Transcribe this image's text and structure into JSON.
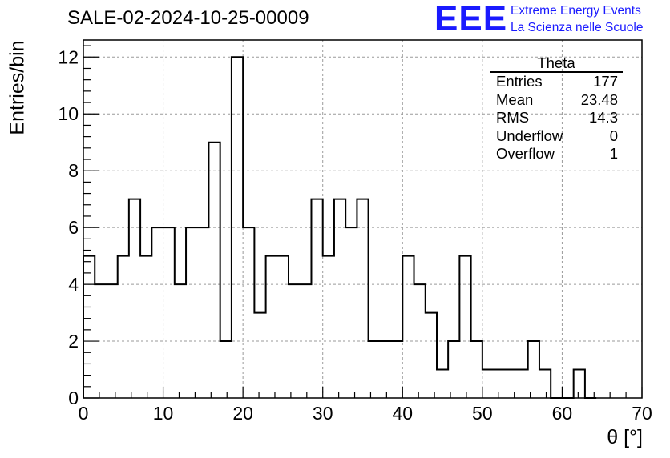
{
  "header": {
    "run_title": "SALE-02-2024-10-25-00009",
    "logo_mark": "EEE",
    "logo_line1": "Extreme Energy Events",
    "logo_line2": "La Scienza nelle Scuole"
  },
  "stats_box": {
    "title": "Theta",
    "rows": [
      {
        "label": "Entries",
        "value": "177"
      },
      {
        "label": "Mean",
        "value": "23.48"
      },
      {
        "label": "RMS",
        "value": "14.3"
      },
      {
        "label": "Underflow",
        "value": "0"
      },
      {
        "label": "Overflow",
        "value": "1"
      }
    ]
  },
  "colors": {
    "line": "#000000",
    "grid": "#9a9a9a",
    "logo": "#1a1aff"
  },
  "chart_data": {
    "type": "histogram",
    "xlabel": "θ [°]",
    "ylabel": "Entries/bin",
    "xlim": [
      0,
      70
    ],
    "ylim": [
      0,
      12.6
    ],
    "grid": true,
    "bin_edges": [
      0,
      1.43,
      2.86,
      4.29,
      5.71,
      7.14,
      8.57,
      10,
      11.43,
      12.86,
      14.29,
      15.71,
      17.14,
      18.57,
      20,
      21.43,
      22.86,
      24.29,
      25.71,
      27.14,
      28.57,
      30,
      31.43,
      32.86,
      34.29,
      35.71,
      37.14,
      38.57,
      40,
      41.43,
      42.86,
      44.29,
      45.71,
      47.14,
      48.57,
      50,
      51.43,
      52.86,
      54.29,
      55.71,
      57.14,
      58.57,
      60,
      61.43,
      62.86,
      64.29
    ],
    "values": [
      5,
      4,
      4,
      5,
      7,
      5,
      6,
      6,
      4,
      6,
      6,
      9,
      2,
      12,
      6,
      3,
      5,
      5,
      4,
      4,
      7,
      5,
      7,
      6,
      7,
      2,
      2,
      2,
      5,
      4,
      3,
      1,
      2,
      5,
      2,
      1,
      1,
      1,
      1,
      2,
      1,
      0,
      0,
      1,
      0
    ],
    "x_ticks": [
      0,
      10,
      20,
      30,
      40,
      50,
      60,
      70
    ],
    "x_tick_labels": [
      "0",
      "10",
      "20",
      "30",
      "40",
      "50",
      "60",
      "70"
    ],
    "y_ticks": [
      0,
      2,
      4,
      6,
      8,
      10,
      12
    ],
    "y_tick_labels": [
      "0",
      "2",
      "4",
      "6",
      "8",
      "10",
      "12"
    ],
    "legend": "stats box top-right"
  }
}
